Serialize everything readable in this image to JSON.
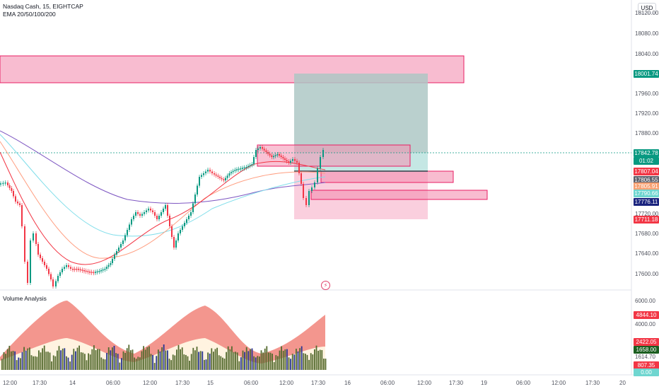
{
  "legend": {
    "symbol_line": "Nasdaq Cash, 15, EIGHTCAP",
    "ema_line": "EMA 20/50/100/200",
    "volume_title": "Volume Analysis"
  },
  "currency": "USD",
  "price_axis": {
    "ticks": [
      "18120.00",
      "18080.00",
      "18040.00",
      "17960.00",
      "17920.00",
      "17880.00",
      "17720.00",
      "17680.00",
      "17640.00",
      "17600.00"
    ],
    "labels": [
      {
        "text": "18001.74",
        "color": "#089981"
      },
      {
        "text": "17842.78",
        "color": "#089981",
        "sub": "01:02"
      },
      {
        "text": "17807.04",
        "color": "#f23645"
      },
      {
        "text": "17806.55",
        "color": "#5d606b"
      },
      {
        "text": "17805.91",
        "color": "#f7a072"
      },
      {
        "text": "17790.66",
        "color": "#6fd6d0"
      },
      {
        "text": "17776.11",
        "color": "#1a237e"
      },
      {
        "text": "17711.18",
        "color": "#f23645"
      }
    ]
  },
  "volume_axis": {
    "ticks": [
      "6000.00",
      "4000.00",
      "1614.70"
    ],
    "labels": [
      {
        "text": "4844.10",
        "color": "#f23645"
      },
      {
        "text": "2422.05",
        "color": "#f23645"
      },
      {
        "text": "1658.00",
        "color": "#1b5e20"
      },
      {
        "text": "807.35",
        "color": "#f23645"
      },
      {
        "text": "0.00",
        "color": "#6fd6d0"
      }
    ]
  },
  "time_axis": {
    "ticks": [
      "12:00",
      "17:30",
      "14",
      "06:00",
      "12:00",
      "17:30",
      "15",
      "06:00",
      "12:00",
      "17:30",
      "16",
      "06:00",
      "12:00",
      "17:30",
      "19",
      "06:00",
      "12:00",
      "17:30",
      "20"
    ]
  },
  "colors": {
    "up": "#089981",
    "down": "#f23645",
    "supply_zone": "#f48fb1",
    "target_zone": "#b2dfdb",
    "stop_zone": "#f8bbd0",
    "ema20": "#f23645",
    "ema50": "#ff9e80",
    "ema100": "#80deea",
    "ema200": "#7e57c2"
  },
  "icons": {
    "lightning": "lightning-icon"
  }
}
